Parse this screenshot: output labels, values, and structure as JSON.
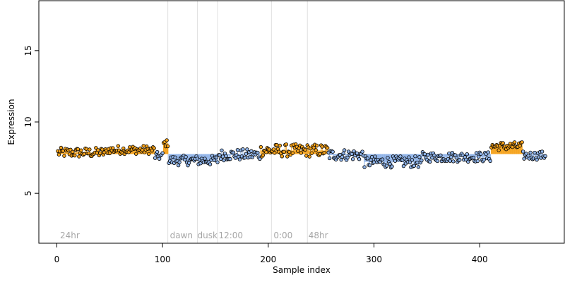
{
  "chart_data": {
    "type": "scatter",
    "xlabel": "Sample index",
    "ylabel": "Expression",
    "xlim": [
      -17,
      480
    ],
    "ylim": [
      1.5,
      18.5
    ],
    "xticks": [
      0,
      100,
      200,
      300,
      400
    ],
    "yticks": [
      5,
      10,
      15
    ],
    "baseline": 7.75,
    "colors": {
      "above": "#f5a21b",
      "below": "#8fb3e8",
      "point_edge": "#000000",
      "divider": "#e0e0e0",
      "condition_label": "#a6a6a6"
    },
    "condition_dividers": [
      105,
      133,
      152,
      203,
      237
    ],
    "condition_labels": [
      {
        "text": "24hr",
        "x": 3
      },
      {
        "text": "dawn",
        "x": 107
      },
      {
        "text": "dusk",
        "x": 133
      },
      {
        "text": "12:00",
        "x": 153
      },
      {
        "text": "0:00",
        "x": 205
      },
      {
        "text": "48hr",
        "x": 238
      }
    ],
    "segments": [
      {
        "x": [
          1,
          47
        ],
        "level": 7.85,
        "spread": 0.35
      },
      {
        "x": [
          48,
          92
        ],
        "level": 8.05,
        "spread": 0.3
      },
      {
        "x": [
          93,
          100
        ],
        "level": 7.6,
        "spread": 0.3
      },
      {
        "x": [
          101,
          105
        ],
        "level": 8.5,
        "spread": 0.25
      },
      {
        "x": [
          106,
          152
        ],
        "level": 7.3,
        "spread": 0.35
      },
      {
        "x": [
          153,
          192
        ],
        "level": 7.7,
        "spread": 0.4
      },
      {
        "x": [
          193,
          256
        ],
        "level": 8.0,
        "spread": 0.45
      },
      {
        "x": [
          257,
          290
        ],
        "level": 7.7,
        "spread": 0.4
      },
      {
        "x": [
          291,
          345
        ],
        "level": 7.2,
        "spread": 0.4
      },
      {
        "x": [
          346,
          410
        ],
        "level": 7.55,
        "spread": 0.35
      },
      {
        "x": [
          411,
          440
        ],
        "level": 8.3,
        "spread": 0.3
      },
      {
        "x": [
          441,
          462
        ],
        "level": 7.65,
        "spread": 0.3
      }
    ]
  }
}
